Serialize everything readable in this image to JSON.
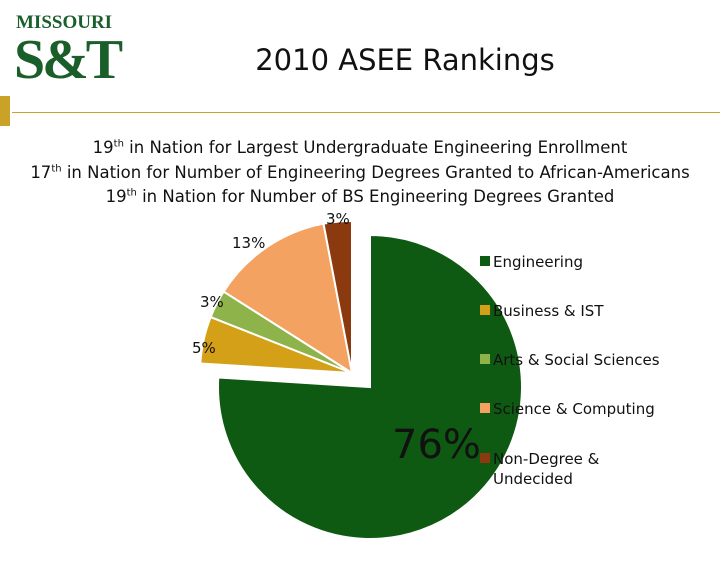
{
  "logo": {
    "top_text": "MISSOURI",
    "main_text": "S&T"
  },
  "slide": {
    "title": "2010 ASEE Rankings",
    "lines": [
      {
        "rank": "19",
        "suffix": "th",
        "text": " in Nation for Largest Undergraduate Engineering Enrollment"
      },
      {
        "rank": "17",
        "suffix": "th",
        "text": " in Nation for Number of Engineering Degrees Granted to  African-Americans"
      },
      {
        "rank": "19",
        "suffix": "th",
        "text": "  in Nation for Number of BS Engineering Degrees Granted"
      }
    ]
  },
  "chart_data": {
    "type": "pie",
    "title": "",
    "slices": [
      {
        "name": "Engineering",
        "value": 76,
        "label": "76%",
        "color": "#0f5a12"
      },
      {
        "name": "Business & IST",
        "value": 5,
        "label": "5%",
        "color": "#d4a017"
      },
      {
        "name": "Arts & Social Sciences",
        "value": 3,
        "label": "3%",
        "color": "#8db34a"
      },
      {
        "name": "Science & Computing",
        "value": 13,
        "label": "13%",
        "color": "#f4a261"
      },
      {
        "name": "Non-Degree & Undecided",
        "value": 3,
        "label": "3%",
        "color": "#8b3a0f"
      }
    ],
    "legend": [
      "Engineering",
      "Business & IST",
      "Arts & Social Sciences",
      "Science & Computing",
      "Non-Degree & Undecided"
    ],
    "legend_position": "right",
    "exploded": "Engineering"
  }
}
